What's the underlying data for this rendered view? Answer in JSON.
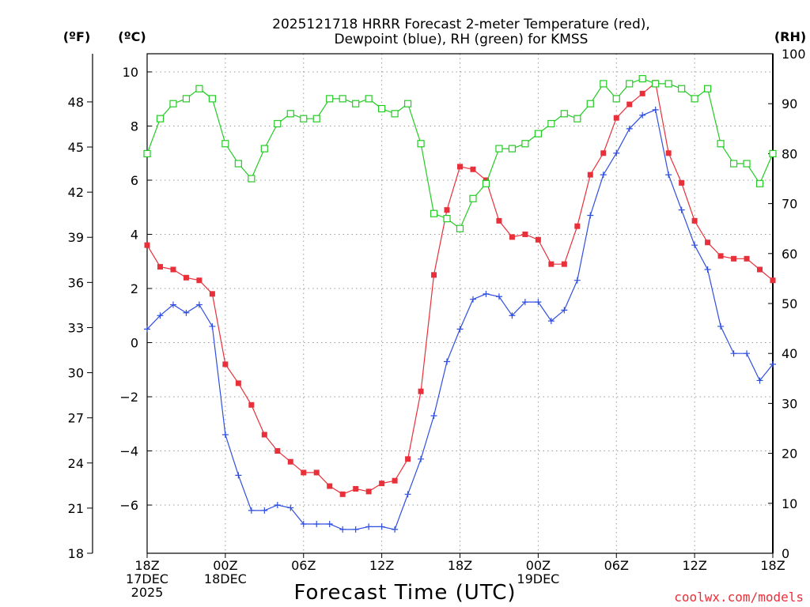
{
  "title_line1": "2025121718 HRRR Forecast 2-meter Temperature (red),",
  "title_line2": "Dewpoint (blue), RH (green) for KMSS",
  "xlabel": "Forecast Time (UTC)",
  "credit": "coolwx.com/models",
  "colors": {
    "temperature": "#e8303a",
    "dewpoint": "#2f4ee0",
    "rh": "#22cc22",
    "grid": "#9a9a9a"
  },
  "chart_data": {
    "type": "line",
    "title": "2025121718 HRRR Forecast 2-meter Temperature (red), Dewpoint (blue), RH (green) for KMSS",
    "xlabel": "Forecast Time (UTC)",
    "x": [
      0,
      1,
      2,
      3,
      4,
      5,
      6,
      7,
      8,
      9,
      10,
      11,
      12,
      13,
      14,
      15,
      16,
      17,
      18,
      19,
      20,
      21,
      22,
      23,
      24,
      25,
      26,
      27,
      28,
      29,
      30,
      31,
      32,
      33,
      34,
      35,
      36,
      37,
      38,
      39,
      40,
      41,
      42,
      43,
      44,
      45,
      46,
      47,
      48
    ],
    "x_range": [
      0,
      48
    ],
    "x_ticks": [
      {
        "x": 0,
        "lines": [
          "18Z",
          "17DEC",
          "2025"
        ]
      },
      {
        "x": 6,
        "lines": [
          "00Z",
          "18DEC"
        ]
      },
      {
        "x": 12,
        "lines": [
          "06Z"
        ]
      },
      {
        "x": 18,
        "lines": [
          "12Z"
        ]
      },
      {
        "x": 24,
        "lines": [
          "18Z"
        ]
      },
      {
        "x": 30,
        "lines": [
          "00Z",
          "19DEC"
        ]
      },
      {
        "x": 36,
        "lines": [
          "06Z"
        ]
      },
      {
        "x": 42,
        "lines": [
          "12Z"
        ]
      },
      {
        "x": 48,
        "lines": [
          "18Z"
        ]
      }
    ],
    "axes": {
      "fahrenheit": {
        "label": "(ºF)",
        "range": [
          18,
          51.2
        ],
        "ticks": [
          18,
          21,
          24,
          27,
          30,
          33,
          36,
          39,
          42,
          45,
          48
        ]
      },
      "celsius": {
        "label": "(ºC)",
        "range": [
          -7.78,
          10.67
        ],
        "ticks": [
          -6,
          -4,
          -2,
          0,
          2,
          4,
          6,
          8,
          10
        ]
      },
      "rh": {
        "label": "(RH)",
        "range": [
          0,
          100
        ],
        "ticks": [
          0,
          10,
          20,
          30,
          40,
          50,
          60,
          70,
          80,
          90,
          100
        ]
      }
    },
    "series": [
      {
        "name": "Temperature",
        "unit": "C",
        "axis": "celsius",
        "color": "#e8303a",
        "marker": "square",
        "values": [
          3.6,
          2.8,
          2.7,
          2.4,
          2.3,
          1.8,
          -0.8,
          -1.5,
          -2.3,
          -3.4,
          -4.0,
          -4.4,
          -4.8,
          -4.8,
          -5.3,
          -5.6,
          -5.4,
          -5.5,
          -5.2,
          -5.1,
          -4.3,
          -1.8,
          2.5,
          4.9,
          6.5,
          6.4,
          6.0,
          4.5,
          3.9,
          4.0,
          3.8,
          2.9,
          2.9,
          4.3,
          6.2,
          7.0,
          8.3,
          8.8,
          9.2,
          9.6,
          7.0,
          5.9,
          4.5,
          3.7,
          3.2,
          3.1,
          3.1,
          2.7,
          2.3
        ]
      },
      {
        "name": "Dewpoint",
        "unit": "C",
        "axis": "celsius",
        "color": "#2f4ee0",
        "marker": "plus",
        "values": [
          0.5,
          1.0,
          1.4,
          1.1,
          1.4,
          0.6,
          -3.4,
          -4.9,
          -6.2,
          -6.2,
          -6.0,
          -6.1,
          -6.7,
          -6.7,
          -6.7,
          -6.9,
          -6.9,
          -6.8,
          -6.8,
          -6.9,
          -5.6,
          -4.3,
          -2.7,
          -0.7,
          0.5,
          1.6,
          1.8,
          1.7,
          1.0,
          1.5,
          1.5,
          0.8,
          1.2,
          2.3,
          4.7,
          6.2,
          7.0,
          7.9,
          8.4,
          8.6,
          6.2,
          4.9,
          3.6,
          2.7,
          0.6,
          -0.4,
          -0.4,
          -1.4,
          -0.8
        ]
      },
      {
        "name": "RH",
        "unit": "%",
        "axis": "rh",
        "color": "#22cc22",
        "marker": "square-open",
        "values": [
          80,
          87,
          90,
          91,
          93,
          91,
          82,
          78,
          75,
          81,
          86,
          88,
          87,
          87,
          91,
          91,
          90,
          91,
          89,
          88,
          90,
          82,
          68,
          67,
          65,
          71,
          74,
          81,
          81,
          82,
          84,
          86,
          88,
          87,
          90,
          94,
          91,
          94,
          95,
          94,
          94,
          93,
          91,
          93,
          82,
          78,
          78,
          74,
          80
        ]
      }
    ]
  }
}
